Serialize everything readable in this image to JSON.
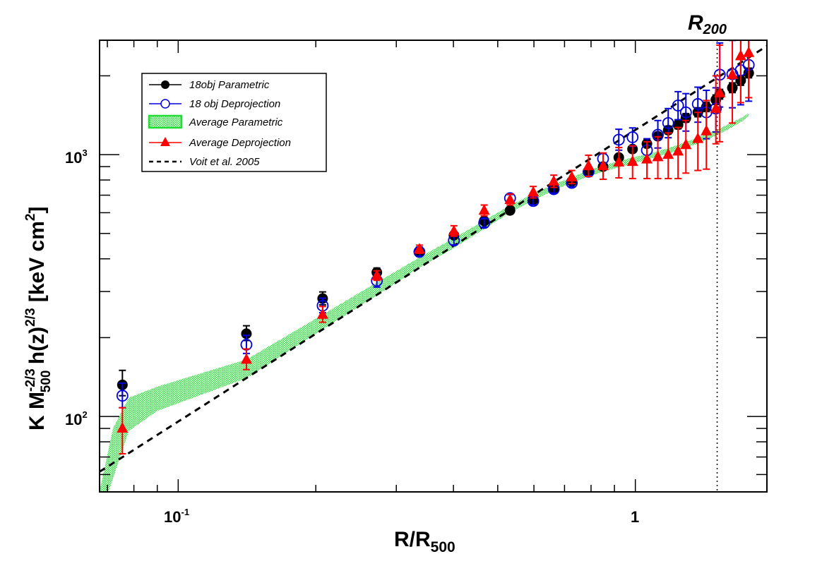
{
  "chart_data": {
    "type": "scatter",
    "title": "",
    "xlabel": "R/R500",
    "xlabel_main": "R/R",
    "xlabel_sub": "500",
    "ylabel": "K M500^-2/3 h(z)^2/3 [keV cm^2]",
    "ylabel_parts": {
      "k": "K M",
      "m_sup": "-2/3",
      "m_sub": "500",
      "hz": " h(z)",
      "hz_sup": "2/3",
      "unit": " [keV cm",
      "unit_sup": "2",
      "close": "]"
    },
    "xscale": "log",
    "yscale": "log",
    "xlim": [
      0.0673,
      1.94
    ],
    "ylim": [
      51.5,
      2735
    ],
    "x_major_ticks": [
      {
        "value": 0.1,
        "label": "10",
        "sup": "-1"
      },
      {
        "value": 1,
        "label": "1",
        "sup": ""
      }
    ],
    "y_major_ticks": [
      {
        "value": 100,
        "label": "10",
        "sup": "2"
      },
      {
        "value": 1000,
        "label": "10",
        "sup": "3"
      }
    ],
    "grid": false,
    "legend_position": "top-left",
    "annotation": {
      "text": "R",
      "sub": "200",
      "x": 1.51
    },
    "series": [
      {
        "name": "18obj Parametric",
        "marker": "filled-circle",
        "color": "#000000",
        "points": [
          [
            0.0755,
            132,
            18,
            12
          ],
          [
            0.141,
            207,
            15,
            12
          ],
          [
            0.207,
            282,
            17,
            15
          ],
          [
            0.272,
            355,
            14,
            12
          ],
          [
            0.337,
            428,
            15,
            14
          ],
          [
            0.401,
            492,
            15,
            13
          ],
          [
            0.467,
            558,
            16,
            15
          ],
          [
            0.532,
            612,
            10,
            9
          ],
          [
            0.598,
            672,
            15,
            14
          ],
          [
            0.663,
            740,
            16,
            15
          ],
          [
            0.726,
            790,
            18,
            17
          ],
          [
            0.79,
            862,
            18,
            16
          ],
          [
            0.85,
            900,
            18,
            17
          ],
          [
            0.92,
            975,
            25,
            22
          ],
          [
            0.986,
            1050,
            30,
            28
          ],
          [
            1.06,
            1100,
            35,
            30
          ],
          [
            1.12,
            1175,
            40,
            35
          ],
          [
            1.18,
            1240,
            45,
            40
          ],
          [
            1.24,
            1300,
            50,
            45
          ],
          [
            1.29,
            1380,
            55,
            50
          ],
          [
            1.37,
            1450,
            60,
            55
          ],
          [
            1.43,
            1520,
            65,
            60
          ],
          [
            1.5,
            1620,
            70,
            65
          ],
          [
            1.53,
            1700,
            75,
            70
          ],
          [
            1.63,
            1800,
            80,
            75
          ],
          [
            1.7,
            1920,
            85,
            80
          ],
          [
            1.77,
            2050,
            90,
            85
          ]
        ]
      },
      {
        "name": "18 obj Deprojection",
        "marker": "open-circle",
        "color": "#0000dd",
        "points": [
          [
            0.0755,
            120,
            14,
            12
          ],
          [
            0.141,
            188,
            16,
            14
          ],
          [
            0.207,
            265,
            18,
            16
          ],
          [
            0.272,
            330,
            20,
            18
          ],
          [
            0.337,
            425,
            18,
            16
          ],
          [
            0.401,
            470,
            20,
            18
          ],
          [
            0.467,
            548,
            22,
            20
          ],
          [
            0.532,
            682,
            22,
            20
          ],
          [
            0.598,
            665,
            25,
            22
          ],
          [
            0.663,
            738,
            28,
            25
          ],
          [
            0.726,
            780,
            30,
            27
          ],
          [
            0.79,
            860,
            35,
            30
          ],
          [
            0.85,
            965,
            45,
            40
          ],
          [
            0.92,
            1140,
            110,
            100
          ],
          [
            0.986,
            1165,
            100,
            90
          ],
          [
            1.06,
            1040,
            110,
            100
          ],
          [
            1.12,
            1190,
            160,
            130
          ],
          [
            1.18,
            1320,
            180,
            160
          ],
          [
            1.24,
            1540,
            200,
            180
          ],
          [
            1.29,
            1450,
            260,
            220
          ],
          [
            1.37,
            1560,
            250,
            230
          ],
          [
            1.43,
            1450,
            310,
            300
          ],
          [
            1.5,
            1500,
            300,
            280
          ],
          [
            1.53,
            2020,
            650,
            500
          ],
          [
            1.63,
            2030,
            700,
            520
          ],
          [
            1.7,
            2100,
            750,
            550
          ],
          [
            1.77,
            2200,
            800,
            600
          ]
        ]
      },
      {
        "name": "Average Deprojection",
        "marker": "filled-triangle",
        "color": "#ff0000",
        "points": [
          [
            0.0755,
            90,
            18,
            18
          ],
          [
            0.141,
            165,
            16,
            14
          ],
          [
            0.207,
            245,
            18,
            16
          ],
          [
            0.272,
            345,
            15,
            14
          ],
          [
            0.337,
            435,
            16,
            15
          ],
          [
            0.401,
            510,
            25,
            22
          ],
          [
            0.467,
            612,
            30,
            28
          ],
          [
            0.532,
            672,
            35,
            30
          ],
          [
            0.598,
            718,
            38,
            35
          ],
          [
            0.663,
            790,
            45,
            40
          ],
          [
            0.726,
            820,
            50,
            45
          ],
          [
            0.79,
            905,
            90,
            80
          ],
          [
            0.85,
            905,
            110,
            100
          ],
          [
            0.92,
            935,
            130,
            120
          ],
          [
            0.986,
            940,
            140,
            130
          ],
          [
            1.06,
            960,
            160,
            150
          ],
          [
            1.12,
            980,
            190,
            170
          ],
          [
            1.18,
            1000,
            210,
            190
          ],
          [
            1.24,
            1030,
            240,
            220
          ],
          [
            1.29,
            1090,
            260,
            240
          ],
          [
            1.37,
            1150,
            300,
            280
          ],
          [
            1.43,
            1230,
            380,
            350
          ],
          [
            1.5,
            1500,
            500,
            400
          ],
          [
            1.53,
            1720,
            900,
            600
          ],
          [
            1.63,
            2020,
            900,
            700
          ],
          [
            1.7,
            2380,
            900,
            800
          ],
          [
            1.77,
            2450,
            800,
            800
          ]
        ]
      }
    ],
    "band": {
      "name": "Average Parametric",
      "color": "#22dd33",
      "x": [
        0.0673,
        0.072,
        0.078,
        0.09,
        0.141,
        0.207,
        0.272,
        0.337,
        0.401,
        0.467,
        0.532,
        0.598,
        0.663,
        0.726,
        0.79,
        0.85,
        0.92,
        0.986,
        1.06,
        1.12,
        1.18,
        1.24,
        1.29,
        1.37,
        1.43,
        1.5,
        1.6,
        1.7,
        1.77
      ],
      "upper": [
        52,
        90,
        118,
        130,
        165,
        245,
        325,
        405,
        480,
        560,
        640,
        710,
        770,
        820,
        870,
        910,
        945,
        975,
        1005,
        1030,
        1060,
        1090,
        1120,
        1160,
        1200,
        1240,
        1310,
        1380,
        1440
      ],
      "lower": [
        40,
        58,
        88,
        105,
        140,
        215,
        290,
        370,
        440,
        520,
        600,
        670,
        730,
        780,
        825,
        860,
        895,
        925,
        955,
        985,
        1010,
        1040,
        1065,
        1100,
        1140,
        1180,
        1250,
        1330,
        1400
      ]
    },
    "reference_line": {
      "name": "Voit et al. 2005",
      "style": "dashed",
      "color": "#000000",
      "x": [
        0.0673,
        1.94
      ],
      "y": [
        61.5,
        2600
      ]
    },
    "vertical_line": {
      "x": 1.51,
      "style": "dotted",
      "label": "R200"
    }
  },
  "legend": {
    "items": [
      {
        "label": "18obj Parametric",
        "kind": "filled-circle",
        "color": "#000000"
      },
      {
        "label": "18 obj Deprojection",
        "kind": "open-circle",
        "color": "#0000dd"
      },
      {
        "label": "Average Parametric",
        "kind": "band",
        "color": "#22dd33"
      },
      {
        "label": "Average Deprojection",
        "kind": "filled-triangle",
        "color": "#ff0000"
      },
      {
        "label": "Voit et al. 2005",
        "kind": "dashed-line",
        "color": "#000000"
      }
    ]
  }
}
